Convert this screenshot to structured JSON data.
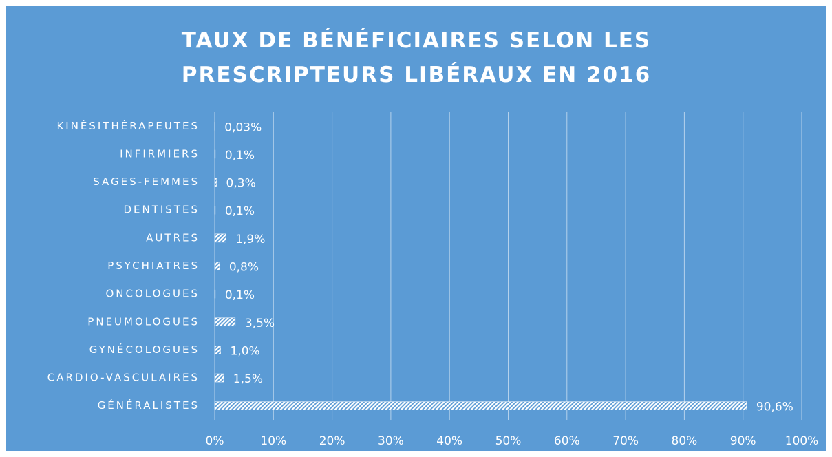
{
  "chart_data": {
    "type": "hbar",
    "title": "TAUX DE BÉNÉFICIAIRES SELON LES PRESCRIPTEURS LIBÉRAUX EN 2016",
    "categories": [
      "KINÉSITHÉRAPEUTES",
      "INFIRMIERS",
      "SAGES-FEMMES",
      "DENTISTES",
      "AUTRES",
      "PSYCHIATRES",
      "ONCOLOGUES",
      "PNEUMOLOGUES",
      "GYNÉCOLOGUES",
      "CARDIO-VASCULAIRES",
      "GÉNÉRALISTES"
    ],
    "values": [
      0.03,
      0.1,
      0.3,
      0.1,
      1.9,
      0.8,
      0.1,
      3.5,
      1.0,
      1.5,
      90.6
    ],
    "value_labels": [
      "0,03%",
      "0,1%",
      "0,3%",
      "0,1%",
      "1,9%",
      "0,8%",
      "0,1%",
      "3,5%",
      "1,0%",
      "1,5%",
      "90,6%"
    ],
    "color": "#ffffff",
    "xlim": [
      0,
      100
    ],
    "xticks": [
      {
        "value": 0,
        "label": "0%"
      },
      {
        "value": 10,
        "label": "10%"
      },
      {
        "value": 20,
        "label": "20%"
      },
      {
        "value": 30,
        "label": "30%"
      },
      {
        "value": 40,
        "label": "40%"
      },
      {
        "value": 50,
        "label": "50%"
      },
      {
        "value": 60,
        "label": "60%"
      },
      {
        "value": 70,
        "label": "70%"
      },
      {
        "value": 80,
        "label": "80%"
      },
      {
        "value": 90,
        "label": "90%"
      },
      {
        "value": 100,
        "label": "100%"
      }
    ],
    "grid": true
  }
}
